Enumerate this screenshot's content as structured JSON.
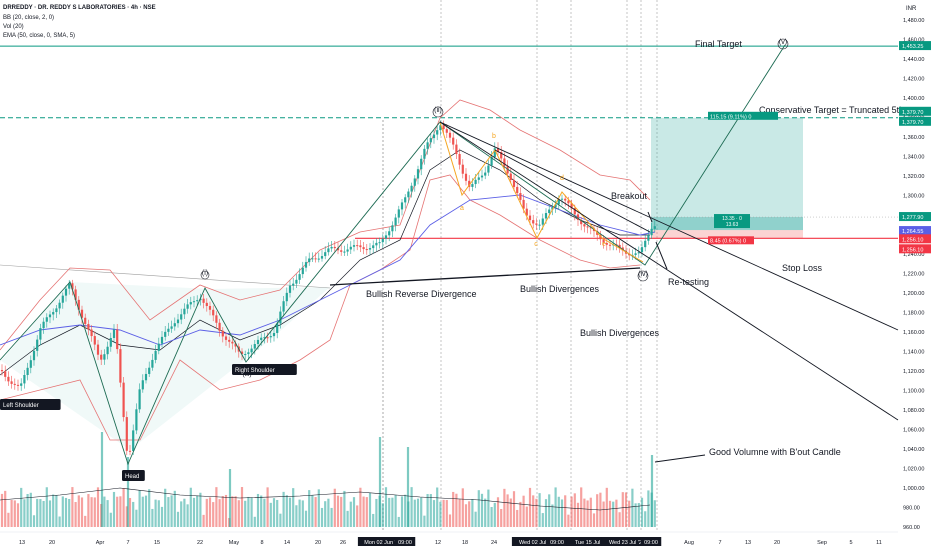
{
  "header": {
    "symbol_line": "DRREDDY · DR. REDDY S LABORATORIES · 4h · NSE",
    "indicators": [
      "BB (20, close, 2, 0)",
      "Vol (20)",
      "EMA (50, close, 0, SMA, 5)"
    ],
    "currency": "INR"
  },
  "colors": {
    "background": "#ffffff",
    "bull_candle": "#26a69a",
    "bear_candle": "#ef5350",
    "bb_bands": "#e57373",
    "bb_basis": "#131722",
    "ema": "#5b5fe6",
    "target_line": "#089981",
    "stop_line": "#f23645",
    "wave_line": "#1d6b53",
    "orange_wave": "#f5a623"
  },
  "chart_data": {
    "type": "candlestick",
    "ylim": [
      950,
      1490
    ],
    "y_ticks": [
      "1,480.00",
      "1,460.00",
      "1,440.00",
      "1,420.00",
      "1,400.00",
      "1,380.00",
      "1,360.00",
      "1,340.00",
      "1,320.00",
      "1,300.00",
      "1,280.00",
      "1,260.00",
      "1,240.00",
      "1,220.00",
      "1,200.00",
      "1,180.00",
      "1,160.00",
      "1,140.00",
      "1,120.00",
      "1,100.00",
      "1,080.00",
      "1,060.00",
      "1,040.00",
      "1,020.00",
      "1,000.00",
      "980.00",
      "960.00"
    ],
    "x_ticks": [
      "13",
      "20",
      "Apr",
      "7",
      "15",
      "22",
      "May",
      "8",
      "14",
      "20",
      "26",
      "Mon 02 Jun '25",
      "09:00",
      "12",
      "18",
      "24",
      "Wed 02 Jul '25",
      "09:00",
      "Tue 15 Jul '25",
      "09:00",
      "Wed 23 Jul '25",
      "09:00",
      "Aug",
      "7",
      "13",
      "20",
      "Sep",
      "5",
      "11"
    ],
    "price_labels": [
      {
        "text": "1,453.25",
        "type": "target"
      },
      {
        "text": "1,379.70",
        "type": "target"
      },
      {
        "text": "1,379.70",
        "type": "target"
      },
      {
        "text": "1,277.90",
        "type": "current"
      },
      {
        "text": "1,264.55",
        "type": "ema"
      },
      {
        "text": "1,256.10",
        "type": "stop"
      },
      {
        "text": "1,256.10",
        "type": "stop"
      }
    ],
    "levels": {
      "final_target": 1453.25,
      "conservative_target": 1379.7,
      "stop_loss": 1256.1,
      "entry": 1264.55
    },
    "position_box_labels": {
      "target": "115.15 (9.11%) 0",
      "mid_top": "13.35 · 0",
      "mid_bottom": "13.63",
      "stop": "8.45 (0.67%) 0"
    },
    "waves": [
      "(i)",
      "(ii)",
      "(iii)",
      "(iv)",
      "(v)",
      "a",
      "b",
      "c",
      "d",
      "e"
    ],
    "annotations": {
      "final_target": "Final Target",
      "conservative_target": "Conservative Target = Truncated 5th",
      "breakout": "Breakout",
      "retesting": "Re-testing",
      "stop_loss": "Stop Loss",
      "bullish_reverse_div": "Bullish Reverse Divergence",
      "bullish_div_1": "Bullish Divergences",
      "bullish_div_2": "Bullish Divergences",
      "good_volume": "Good Volumne with B'out Candle",
      "left_shoulder": "Left Shoulder",
      "head": "Head",
      "right_shoulder": "Right Shoulder"
    }
  }
}
